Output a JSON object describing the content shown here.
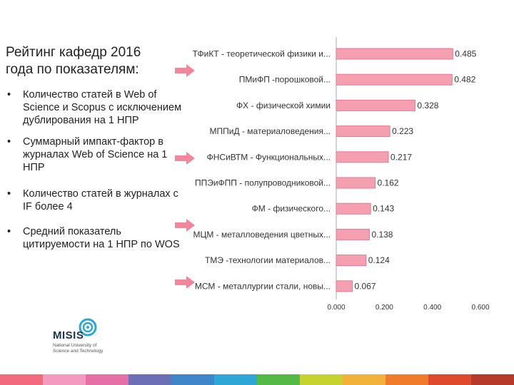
{
  "slide": {
    "title": "Рейтинг кафедр 2016 года по показателям:",
    "bullets": [
      "Количество статей в Web of Science и Scopus с исключением дублирования на 1 НПР",
      "Суммарный импакт-фактор в журналах Web of Science на 1 НПР",
      "Количество статей в журналах с IF более 4",
      "Средний показатель цитируемости на 1 НПР по WOS"
    ],
    "bullet_symbol": "•",
    "logo": {
      "name": "MISIS",
      "subtitle": "National University of Science and Technology"
    },
    "arrow_color": "#f2708a",
    "stripe_colors": [
      "#f26a7e",
      "#f49ac1",
      "#e76fa8",
      "#6d6fb6",
      "#3f86c8",
      "#2ea6d6",
      "#55b948",
      "#c5d22f",
      "#f2b138",
      "#f07c2b",
      "#e04a2c",
      "#b53a2a"
    ]
  },
  "chart_data": {
    "type": "bar",
    "orientation": "horizontal",
    "categories": [
      "ТФиКТ - теоретической физики и...",
      "ПМиФП -порошковой...",
      "ФХ - физической химии",
      "МППиД - материаловедения...",
      "ФНСиВТМ - Функциональных...",
      "ППЭиФПП - полупроводниковой...",
      "ФМ - физического...",
      "МЦМ - металловедения цветных...",
      "ТМЭ -технологии материалов...",
      "МСМ - металлургии стали, новы..."
    ],
    "values": [
      0.485,
      0.482,
      0.328,
      0.223,
      0.217,
      0.162,
      0.143,
      0.138,
      0.124,
      0.067
    ],
    "value_labels": [
      "0.485",
      "0.482",
      "0.328",
      "0.223",
      "0.217",
      "0.162",
      "0.143",
      "0.138",
      "0.124",
      "0.067"
    ],
    "xlim": [
      0,
      0.6
    ],
    "xticks": [
      "0.000",
      "0.200",
      "0.400",
      "0.600"
    ],
    "bar_color": "#f4a0b0",
    "bar_edge_color": "#e8788f",
    "grid": false,
    "legend": "none"
  }
}
